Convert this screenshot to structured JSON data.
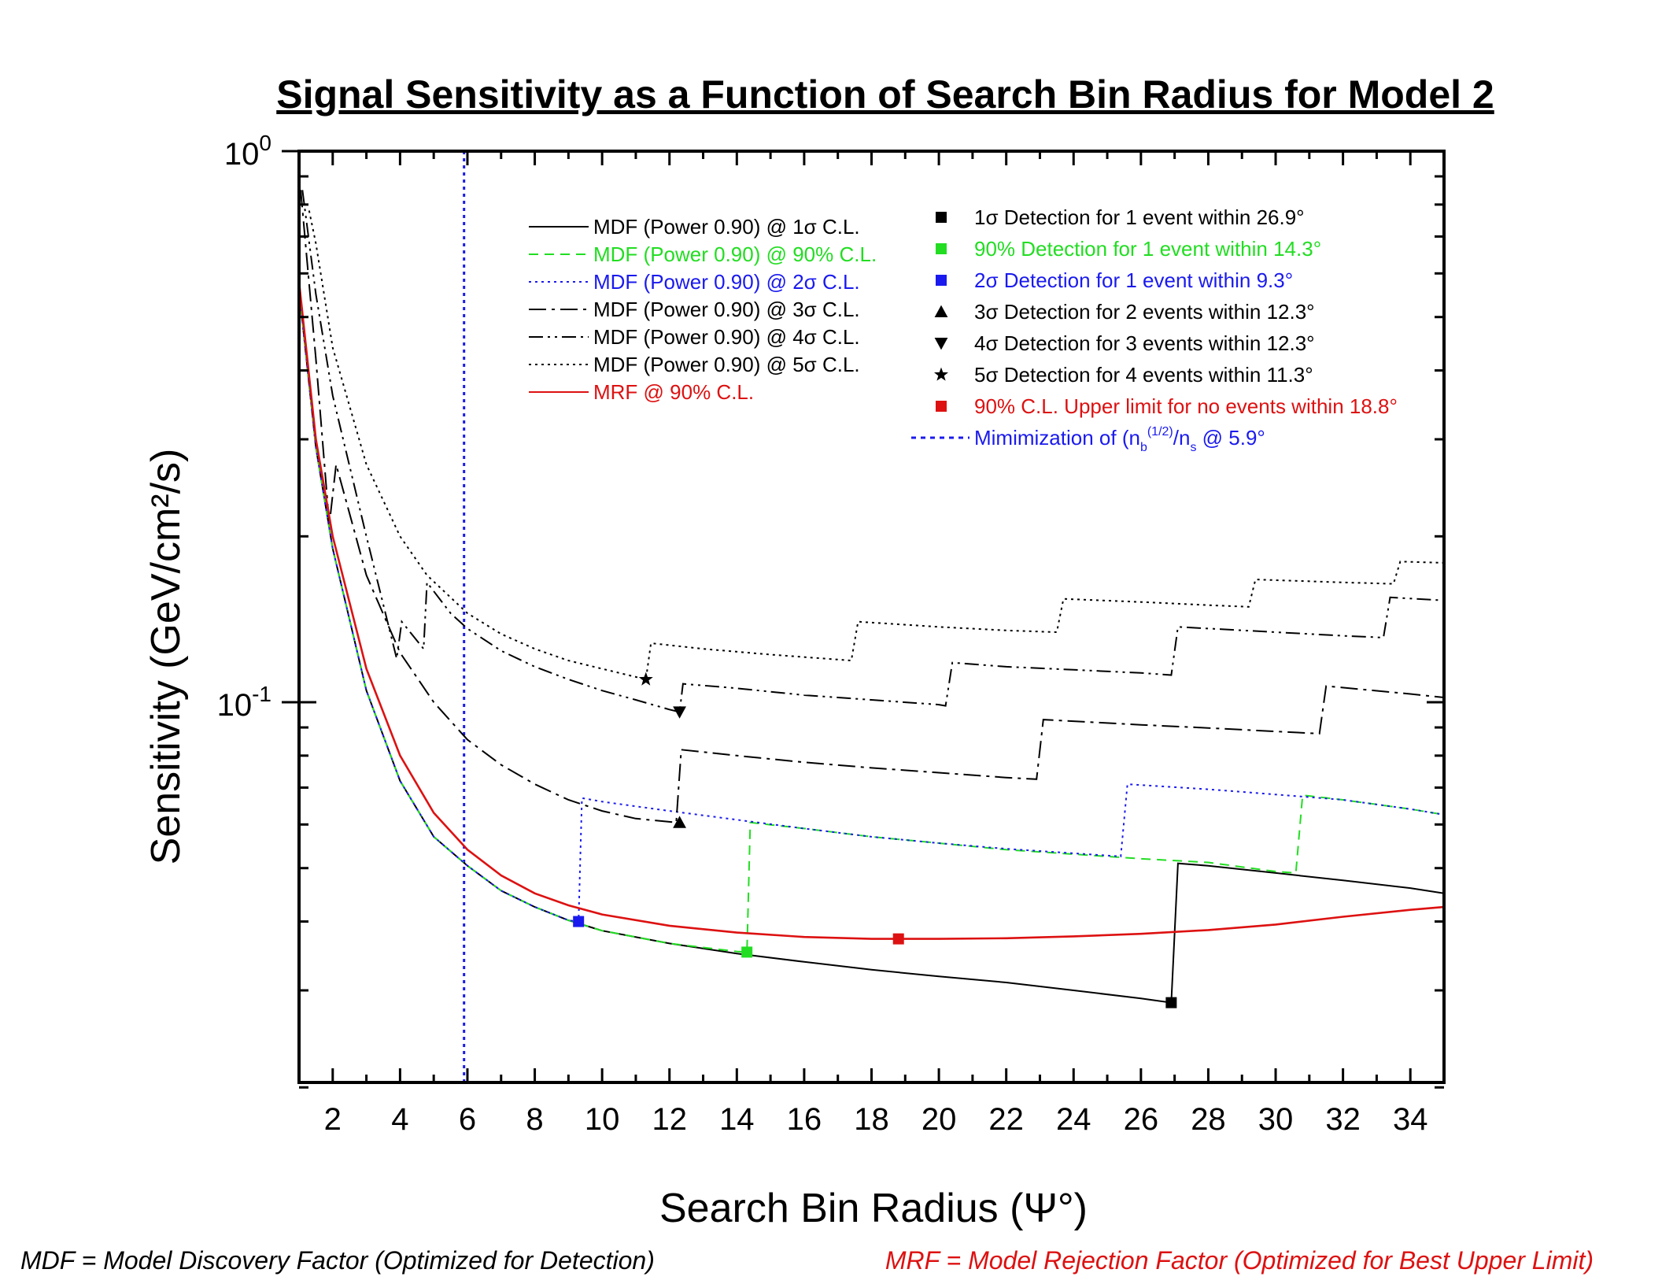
{
  "chart_data": {
    "type": "line",
    "title": "Signal Sensitivity as a Function of Search Bin Radius for Model 2",
    "xlabel": "Search Bin Radius (Ψ°)",
    "ylabel": "Sensitivity (GeV/cm²/s)",
    "xlim": [
      1,
      35
    ],
    "ylim": [
      0.02,
      1.0
    ],
    "yscale": "log",
    "x_ticks": [
      "2",
      "4",
      "6",
      "8",
      "10",
      "12",
      "14",
      "16",
      "18",
      "20",
      "22",
      "24",
      "26",
      "28",
      "30",
      "32",
      "34"
    ],
    "y_ticks": [
      {
        "value": 1.0,
        "base": "10",
        "exp": "0"
      },
      {
        "value": 0.1,
        "base": "10",
        "exp": "-1"
      }
    ],
    "grid": false,
    "legend_position": "top-left",
    "series": [
      {
        "name": "MDF (Power 0.90) @ 1σ C.L.",
        "color": "#000000",
        "dash": "solid",
        "points": [
          [
            1.0,
            0.56
          ],
          [
            1.5,
            0.29
          ],
          [
            2,
            0.19
          ],
          [
            3,
            0.105
          ],
          [
            4,
            0.072
          ],
          [
            5,
            0.057
          ],
          [
            6,
            0.0505
          ],
          [
            7,
            0.0455
          ],
          [
            8,
            0.0425
          ],
          [
            9,
            0.0402
          ],
          [
            10,
            0.0385
          ],
          [
            12,
            0.0365
          ],
          [
            14,
            0.035
          ],
          [
            16,
            0.0338
          ],
          [
            18,
            0.0327
          ],
          [
            20,
            0.0318
          ],
          [
            22,
            0.031
          ],
          [
            24,
            0.03
          ],
          [
            26,
            0.029
          ],
          [
            26.9,
            0.0285
          ],
          [
            27.1,
            0.051
          ],
          [
            28,
            0.0505
          ],
          [
            30,
            0.049
          ],
          [
            32,
            0.0475
          ],
          [
            34,
            0.046
          ],
          [
            35,
            0.045
          ]
        ]
      },
      {
        "name": "MDF (Power 0.90) @ 90% C.L.",
        "color": "#22dd22",
        "dash": "dashed",
        "points": [
          [
            1.0,
            0.56
          ],
          [
            1.5,
            0.29
          ],
          [
            2,
            0.19
          ],
          [
            3,
            0.105
          ],
          [
            4,
            0.072
          ],
          [
            5,
            0.057
          ],
          [
            6,
            0.0505
          ],
          [
            7,
            0.0455
          ],
          [
            8,
            0.0425
          ],
          [
            9,
            0.0402
          ],
          [
            10,
            0.0385
          ],
          [
            12,
            0.0365
          ],
          [
            14,
            0.0353
          ],
          [
            14.3,
            0.0352
          ],
          [
            14.4,
            0.0605
          ],
          [
            16,
            0.059
          ],
          [
            18,
            0.057
          ],
          [
            20,
            0.0555
          ],
          [
            22,
            0.054
          ],
          [
            24,
            0.053
          ],
          [
            26,
            0.052
          ],
          [
            28,
            0.0512
          ],
          [
            30,
            0.0493
          ],
          [
            30.6,
            0.049
          ],
          [
            30.8,
            0.0678
          ],
          [
            32,
            0.0665
          ],
          [
            34,
            0.064
          ],
          [
            35,
            0.0625
          ]
        ]
      },
      {
        "name": "MDF (Power 0.90) @ 2σ C.L.",
        "color": "#1a1aee",
        "dash": "dotted",
        "points": [
          [
            1.0,
            0.56
          ],
          [
            1.5,
            0.29
          ],
          [
            2,
            0.19
          ],
          [
            3,
            0.105
          ],
          [
            4,
            0.072
          ],
          [
            5,
            0.057
          ],
          [
            6,
            0.0505
          ],
          [
            7,
            0.0455
          ],
          [
            8,
            0.0425
          ],
          [
            9,
            0.0402
          ],
          [
            9.3,
            0.04
          ],
          [
            9.4,
            0.067
          ],
          [
            10,
            0.066
          ],
          [
            12,
            0.0635
          ],
          [
            14,
            0.0612
          ],
          [
            16,
            0.059
          ],
          [
            18,
            0.057
          ],
          [
            20,
            0.0555
          ],
          [
            22,
            0.0542
          ],
          [
            24,
            0.0532
          ],
          [
            25.4,
            0.0525
          ],
          [
            25.6,
            0.071
          ],
          [
            28,
            0.0695
          ],
          [
            30,
            0.068
          ],
          [
            32,
            0.0665
          ],
          [
            34,
            0.064
          ],
          [
            35,
            0.0625
          ]
        ]
      },
      {
        "name": "MDF (Power 0.90) @ 3σ C.L.",
        "color": "#000000",
        "dash": "dashdot",
        "points": [
          [
            1.05,
            0.85
          ],
          [
            1.5,
            0.42
          ],
          [
            1.9,
            0.21
          ],
          [
            2.1,
            0.27
          ],
          [
            2.5,
            0.22
          ],
          [
            3,
            0.17
          ],
          [
            4,
            0.123
          ],
          [
            5,
            0.1
          ],
          [
            6,
            0.0855
          ],
          [
            7,
            0.077
          ],
          [
            8,
            0.071
          ],
          [
            9,
            0.0665
          ],
          [
            10,
            0.0635
          ],
          [
            11,
            0.0615
          ],
          [
            12.2,
            0.0605
          ],
          [
            12.35,
            0.082
          ],
          [
            14,
            0.08
          ],
          [
            16,
            0.0778
          ],
          [
            18,
            0.076
          ],
          [
            20,
            0.0745
          ],
          [
            22,
            0.073
          ],
          [
            22.9,
            0.0725
          ],
          [
            23.1,
            0.093
          ],
          [
            26,
            0.091
          ],
          [
            28,
            0.0898
          ],
          [
            30,
            0.0885
          ],
          [
            31.3,
            0.0877
          ],
          [
            31.5,
            0.107
          ],
          [
            34,
            0.1035
          ],
          [
            35,
            0.102
          ]
        ]
      },
      {
        "name": "MDF (Power 0.90) @ 4σ C.L.",
        "color": "#000000",
        "dash": "dashdotdot",
        "points": [
          [
            1.1,
            0.85
          ],
          [
            1.5,
            0.55
          ],
          [
            2,
            0.36
          ],
          [
            3,
            0.2
          ],
          [
            3.9,
            0.12
          ],
          [
            4.05,
            0.14
          ],
          [
            4.7,
            0.125
          ],
          [
            4.8,
            0.165
          ],
          [
            5.5,
            0.145
          ],
          [
            6,
            0.136
          ],
          [
            7,
            0.124
          ],
          [
            8,
            0.116
          ],
          [
            9,
            0.11
          ],
          [
            10,
            0.105
          ],
          [
            11,
            0.101
          ],
          [
            12,
            0.097
          ],
          [
            12.3,
            0.096
          ],
          [
            12.4,
            0.108
          ],
          [
            14,
            0.106
          ],
          [
            16,
            0.103
          ],
          [
            18,
            0.101
          ],
          [
            20,
            0.099
          ],
          [
            20.2,
            0.0985
          ],
          [
            20.4,
            0.118
          ],
          [
            22,
            0.116
          ],
          [
            24,
            0.1145
          ],
          [
            26,
            0.113
          ],
          [
            26.9,
            0.112
          ],
          [
            27.1,
            0.137
          ],
          [
            30,
            0.134
          ],
          [
            32,
            0.132
          ],
          [
            33.2,
            0.131
          ],
          [
            33.4,
            0.155
          ],
          [
            35,
            0.153
          ]
        ]
      },
      {
        "name": "MDF (Power 0.90) @ 5σ C.L.",
        "color": "#000000",
        "dash": "dotted",
        "points": [
          [
            1.3,
            0.78
          ],
          [
            1.5,
            0.68
          ],
          [
            2,
            0.44
          ],
          [
            3,
            0.27
          ],
          [
            4,
            0.2
          ],
          [
            4.8,
            0.17
          ],
          [
            6,
            0.145
          ],
          [
            7,
            0.133
          ],
          [
            8,
            0.125
          ],
          [
            9,
            0.119
          ],
          [
            10,
            0.115
          ],
          [
            11.3,
            0.11
          ],
          [
            11.45,
            0.128
          ],
          [
            13,
            0.125
          ],
          [
            15,
            0.122
          ],
          [
            17,
            0.1195
          ],
          [
            17.4,
            0.119
          ],
          [
            17.6,
            0.14
          ],
          [
            20,
            0.137
          ],
          [
            22,
            0.135
          ],
          [
            23.5,
            0.134
          ],
          [
            23.7,
            0.154
          ],
          [
            26,
            0.152
          ],
          [
            28,
            0.15
          ],
          [
            29.2,
            0.149
          ],
          [
            29.4,
            0.167
          ],
          [
            32,
            0.165
          ],
          [
            33.5,
            0.164
          ],
          [
            33.7,
            0.18
          ],
          [
            35,
            0.179
          ]
        ]
      },
      {
        "name": "MRF @ 90% C.L.",
        "color": "#dd1111",
        "dash": "solid",
        "points": [
          [
            1.0,
            0.58
          ],
          [
            1.5,
            0.3
          ],
          [
            2,
            0.2
          ],
          [
            3,
            0.115
          ],
          [
            4,
            0.08
          ],
          [
            5,
            0.063
          ],
          [
            6,
            0.054
          ],
          [
            7,
            0.0485
          ],
          [
            8,
            0.045
          ],
          [
            9,
            0.0428
          ],
          [
            10,
            0.0412
          ],
          [
            12,
            0.0393
          ],
          [
            14,
            0.0382
          ],
          [
            16,
            0.0375
          ],
          [
            18,
            0.0372
          ],
          [
            20,
            0.0372
          ],
          [
            22,
            0.0373
          ],
          [
            24,
            0.0376
          ],
          [
            26,
            0.038
          ],
          [
            28,
            0.0386
          ],
          [
            30,
            0.0395
          ],
          [
            32,
            0.0408
          ],
          [
            34,
            0.042
          ],
          [
            35,
            0.0425
          ]
        ]
      }
    ],
    "markers": [
      {
        "label": "1σ Detection for 1 event within 26.9°",
        "symbol": "square",
        "color": "#000000",
        "x": 26.9,
        "y": 0.0285
      },
      {
        "label": "90% Detection for 1 event within 14.3°",
        "symbol": "square",
        "color": "#22dd22",
        "x": 14.3,
        "y": 0.0352
      },
      {
        "label": "2σ Detection for 1 event within 9.3°",
        "symbol": "square",
        "color": "#1a1aee",
        "x": 9.3,
        "y": 0.04
      },
      {
        "label": "3σ Detection for 2 events within 12.3°",
        "symbol": "triangle-up",
        "color": "#000000",
        "x": 12.3,
        "y": 0.0605
      },
      {
        "label": "4σ Detection for 3 events within 12.3°",
        "symbol": "triangle-down",
        "color": "#000000",
        "x": 12.3,
        "y": 0.096
      },
      {
        "label": "5σ Detection for 4 events within 11.3°",
        "symbol": "star",
        "color": "#000000",
        "x": 11.3,
        "y": 0.11
      },
      {
        "label": "90% C.L. Upper limit for no events within 18.8°",
        "symbol": "square",
        "color": "#dd1111",
        "x": 18.8,
        "y": 0.0372
      }
    ],
    "vline": {
      "label": "Mimimization of (n",
      "x": 5.9,
      "color": "#1a1aee"
    }
  },
  "footnotes": {
    "mdf": "MDF = Model Discovery Factor (Optimized for Detection)",
    "mrf": "MRF = Model Rejection Factor (Optimized for Best Upper Limit)"
  }
}
